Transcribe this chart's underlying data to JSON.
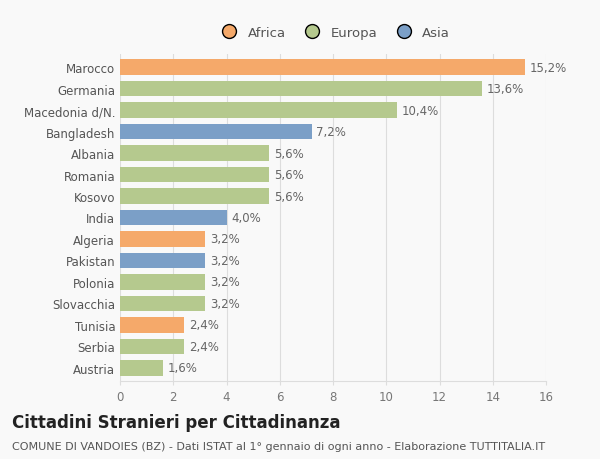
{
  "categories": [
    "Austria",
    "Serbia",
    "Tunisia",
    "Slovacchia",
    "Polonia",
    "Pakistan",
    "Algeria",
    "India",
    "Kosovo",
    "Romania",
    "Albania",
    "Bangladesh",
    "Macedonia d/N.",
    "Germania",
    "Marocco"
  ],
  "values": [
    1.6,
    2.4,
    2.4,
    3.2,
    3.2,
    3.2,
    3.2,
    4.0,
    5.6,
    5.6,
    5.6,
    7.2,
    10.4,
    13.6,
    15.2
  ],
  "labels": [
    "1,6%",
    "2,4%",
    "2,4%",
    "3,2%",
    "3,2%",
    "3,2%",
    "3,2%",
    "4,0%",
    "5,6%",
    "5,6%",
    "5,6%",
    "7,2%",
    "10,4%",
    "13,6%",
    "15,2%"
  ],
  "colors": [
    "#b5c98e",
    "#b5c98e",
    "#f5a96a",
    "#b5c98e",
    "#b5c98e",
    "#7b9fc7",
    "#f5a96a",
    "#7b9fc7",
    "#b5c98e",
    "#b5c98e",
    "#b5c98e",
    "#7b9fc7",
    "#b5c98e",
    "#b5c98e",
    "#f5a96a"
  ],
  "legend_labels": [
    "Africa",
    "Europa",
    "Asia"
  ],
  "legend_colors": [
    "#f5a96a",
    "#b5c98e",
    "#7b9fc7"
  ],
  "title": "Cittadini Stranieri per Cittadinanza",
  "subtitle": "COMUNE DI VANDOIES (BZ) - Dati ISTAT al 1° gennaio di ogni anno - Elaborazione TUTTITALIA.IT",
  "xlim": [
    0,
    16
  ],
  "xticks": [
    0,
    2,
    4,
    6,
    8,
    10,
    12,
    14,
    16
  ],
  "background_color": "#f9f9f9",
  "bar_height": 0.72,
  "grid_color": "#dddddd",
  "title_fontsize": 12,
  "subtitle_fontsize": 8,
  "label_fontsize": 8.5,
  "tick_fontsize": 8.5,
  "legend_fontsize": 9.5
}
